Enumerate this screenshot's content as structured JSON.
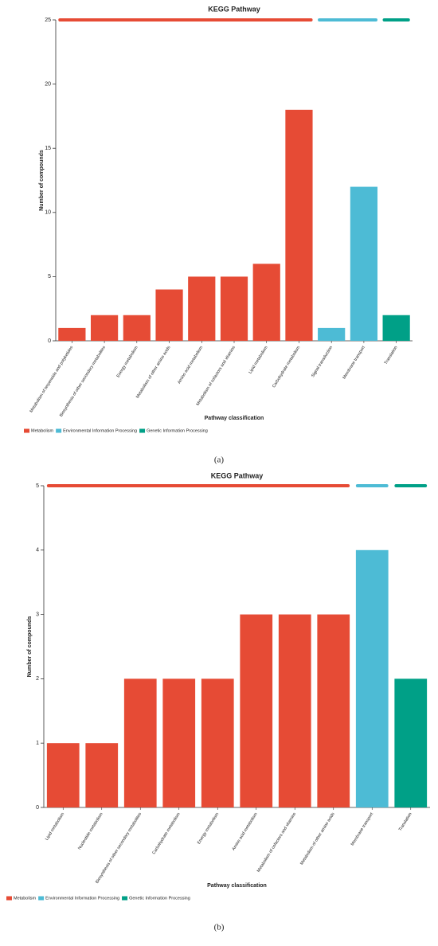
{
  "chart_data": [
    {
      "type": "bar",
      "title": "KEGG Pathway",
      "ylabel": "Number of compounds",
      "xlabel": "Pathway classification",
      "caption": "(a)",
      "categories": [
        "Metabolism of terpenoids and polyketides",
        "Biosynthesis of other secondary metabolites",
        "Energy metabolism",
        "Metabolism of other amino acids",
        "Amino acid metabolism",
        "Metabolism of cofactors and vitamins",
        "Lipid metabolism",
        "Carbohydrate metabolism",
        "Signal transduction",
        "Membrane transport",
        "Translation"
      ],
      "series": [
        {
          "name": "Metabolism",
          "color": "#e64b35",
          "values": [
            1,
            2,
            2,
            4,
            5,
            5,
            6,
            18,
            null,
            null,
            null
          ]
        },
        {
          "name": "Environmental Information Processing",
          "color": "#4dbbd5",
          "values": [
            null,
            null,
            null,
            null,
            null,
            null,
            null,
            null,
            1,
            12,
            null
          ]
        },
        {
          "name": "Genetic Information Processing",
          "color": "#00a087",
          "values": [
            null,
            null,
            null,
            null,
            null,
            null,
            null,
            null,
            null,
            null,
            2
          ]
        }
      ],
      "ylim": [
        0,
        25
      ],
      "yticks": [
        0,
        5,
        10,
        15,
        20,
        25
      ],
      "legend": "bottom-left"
    },
    {
      "type": "bar",
      "title": "KEGG Pathway",
      "ylabel": "Number of compounds",
      "xlabel": "Pathway classification",
      "caption": "(b)",
      "categories": [
        "Lipid metabolism",
        "Nucleotide metabolism",
        "Biosynthesis of other secondary metabolites",
        "Carbohydrate metabolism",
        "Energy metabolism",
        "Amino acid metabolism",
        "Metabolism of cofactors and vitamins",
        "Metabolism of other amino acids",
        "Membrane transport",
        "Translation"
      ],
      "series": [
        {
          "name": "Metabolism",
          "color": "#e64b35",
          "values": [
            1,
            1,
            2,
            2,
            2,
            3,
            3,
            3,
            null,
            null
          ]
        },
        {
          "name": "Environmental Information Processing",
          "color": "#4dbbd5",
          "values": [
            null,
            null,
            null,
            null,
            null,
            null,
            null,
            null,
            4,
            null
          ]
        },
        {
          "name": "Genetic Information Processing",
          "color": "#00a087",
          "values": [
            null,
            null,
            null,
            null,
            null,
            null,
            null,
            null,
            null,
            2
          ]
        }
      ],
      "ylim": [
        0,
        5
      ],
      "yticks": [
        0,
        1,
        2,
        3,
        4,
        5
      ],
      "legend": "bottom-left"
    }
  ]
}
